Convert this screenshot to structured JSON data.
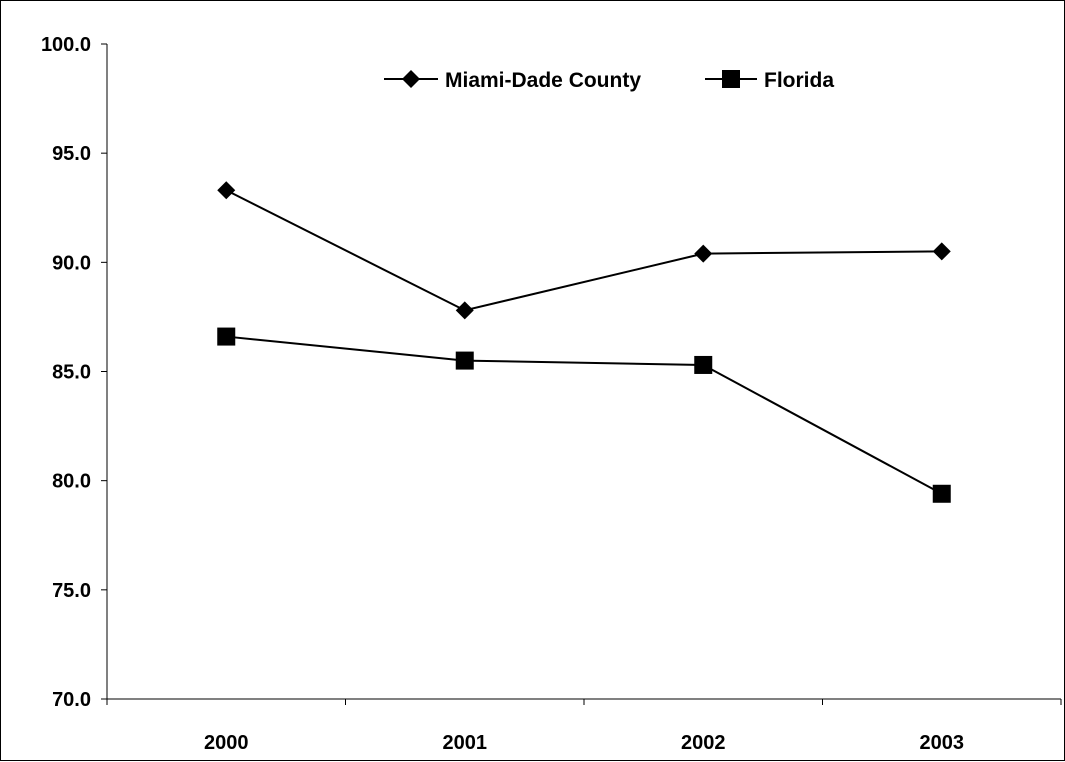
{
  "chart_data": {
    "type": "line",
    "title": "",
    "xlabel": "",
    "ylabel": "",
    "categories": [
      "2000",
      "2001",
      "2002",
      "2003"
    ],
    "ylim": [
      70,
      100
    ],
    "y_ticks": [
      "70.0",
      "75.0",
      "80.0",
      "85.0",
      "90.0",
      "95.0",
      "100.0"
    ],
    "grid": false,
    "legend_position": "top",
    "series": [
      {
        "name": "Miami-Dade County",
        "marker": "diamond",
        "color": "#000000",
        "values": [
          93.3,
          87.8,
          90.4,
          90.5
        ]
      },
      {
        "name": "Florida",
        "marker": "square",
        "color": "#000000",
        "values": [
          86.6,
          85.5,
          85.3,
          79.4
        ]
      }
    ]
  }
}
